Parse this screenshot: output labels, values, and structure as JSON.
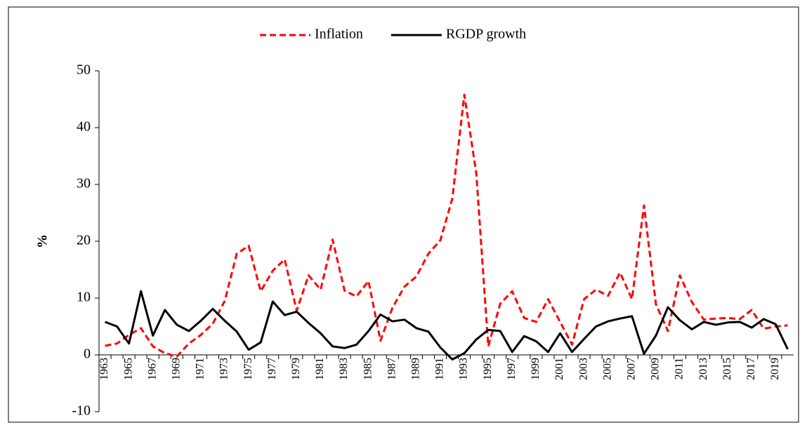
{
  "chart_data": {
    "type": "line",
    "categories": [
      "1963",
      null,
      "1965",
      null,
      "1967",
      null,
      "1969",
      null,
      "1971",
      null,
      "1973",
      null,
      "1975",
      null,
      "1977",
      null,
      "1979",
      null,
      "1981",
      null,
      "1983",
      null,
      "1985",
      null,
      "1987",
      null,
      "1989",
      null,
      "1991",
      null,
      "1993",
      null,
      "1995",
      null,
      "1997",
      null,
      "1999",
      null,
      "2001",
      null,
      "2003",
      null,
      "2005",
      null,
      "2007",
      null,
      "2009",
      null,
      "2011",
      null,
      "2013",
      null,
      "2015",
      null,
      "2017",
      null,
      "2019",
      null
    ],
    "series": [
      {
        "name": "Inflation",
        "color": "#ff0000",
        "dashed": true,
        "values": [
          1.6,
          2.0,
          3.5,
          4.7,
          1.5,
          0.3,
          -0.3,
          2.0,
          3.5,
          5.5,
          9.5,
          17.8,
          19.2,
          11.2,
          14.8,
          16.8,
          7.8,
          14.0,
          11.5,
          20.3,
          11.3,
          10.3,
          13.0,
          2.5,
          8.3,
          12.0,
          13.8,
          17.8,
          20.2,
          27.5,
          45.8,
          32.0,
          1.5,
          9.0,
          11.2,
          6.5,
          5.8,
          9.8,
          5.8,
          1.8,
          9.8,
          11.5,
          10.4,
          14.5,
          9.8,
          26.3,
          8.9,
          4.2,
          14.0,
          9.3,
          6.2,
          6.4,
          6.5,
          6.3,
          7.9,
          4.6,
          5.0,
          5.2
        ]
      },
      {
        "name": "RGDP growth",
        "color": "#000000",
        "dashed": false,
        "values": [
          5.8,
          5.0,
          2.0,
          11.2,
          3.4,
          7.9,
          5.3,
          4.2,
          6.0,
          8.1,
          6.0,
          4.1,
          0.9,
          2.2,
          9.4,
          7.0,
          7.6,
          5.6,
          3.8,
          1.5,
          1.2,
          1.8,
          4.2,
          7.1,
          5.9,
          6.2,
          4.7,
          4.1,
          1.3,
          -0.8,
          0.3,
          2.7,
          4.4,
          4.2,
          0.5,
          3.3,
          2.4,
          0.5,
          3.8,
          0.5,
          2.8,
          5.0,
          5.9,
          6.4,
          6.8,
          0.2,
          3.4,
          8.4,
          6.1,
          4.5,
          5.8,
          5.3,
          5.7,
          5.8,
          4.8,
          6.3,
          5.4,
          1.0
        ]
      }
    ],
    "y_label": "%",
    "ylim": [
      -10,
      50
    ],
    "yticks": [
      -10,
      0,
      10,
      20,
      30,
      40,
      50
    ],
    "legend": "top"
  }
}
